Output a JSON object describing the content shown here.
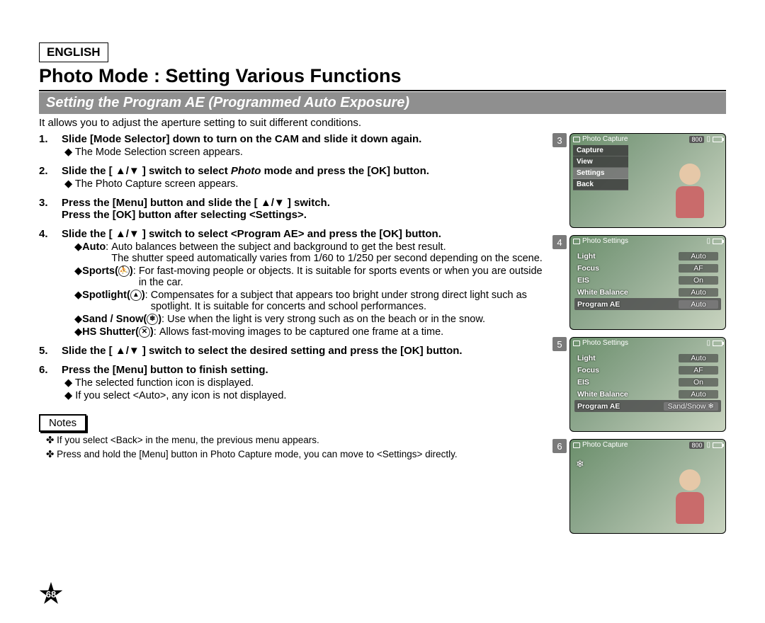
{
  "lang": "ENGLISH",
  "main_title": "Photo Mode : Setting Various Functions",
  "sub_title": "Setting the Program AE (Programmed Auto Exposure)",
  "intro": "It allows you to adjust the aperture setting to suit different conditions.",
  "steps": {
    "s1": {
      "head": "Slide [Mode Selector] down to turn on the CAM and slide it down again.",
      "sub": "The Mode Selection screen appears."
    },
    "s2": {
      "head_pre": "Slide the [ ▲/▼ ] switch to select ",
      "head_it": "Photo",
      "head_post": " mode and press the [OK] button.",
      "sub": "The Photo Capture screen appears."
    },
    "s3": {
      "head1": "Press the [Menu] button and slide the [ ▲/▼ ] switch.",
      "head2": "Press the [OK] button after selecting <Settings>."
    },
    "s4": {
      "head": "Slide the [ ▲/▼ ] switch to select <Program AE> and press the [OK] button.",
      "modes": {
        "auto": {
          "name": "Auto",
          "desc": "Auto balances between the subject and background to get the best result.",
          "desc2": "The shutter speed automatically varies from 1/60 to 1/250 per second depending on the scene."
        },
        "sports": {
          "name": "Sports(",
          "icon": "⛹",
          "close": ")",
          "desc": "For fast-moving people or objects. It is suitable for sports events or when you are outside in the car."
        },
        "spot": {
          "name": "Spotlight(",
          "icon": "▲",
          "close": ")",
          "desc": "Compensates for a subject that appears too bright under strong direct light such as spotlight. It is suitable for concerts and school performances."
        },
        "sand": {
          "name": "Sand / Snow(",
          "icon": "❄",
          "close": ")",
          "desc": "Use when the light is very strong such as on the beach or in the snow."
        },
        "hs": {
          "name": "HS Shutter(",
          "icon": "✕",
          "close": ")",
          "desc": "Allows fast-moving images to be captured one frame at a time."
        }
      }
    },
    "s5": {
      "head": "Slide the [ ▲/▼ ] switch to select the desired setting and press the [OK] button."
    },
    "s6": {
      "head": "Press the [Menu] button to finish setting.",
      "sub1": "The selected function icon is displayed.",
      "sub2": "If you select <Auto>, any icon is not displayed."
    }
  },
  "notes_label": "Notes",
  "notes": {
    "n1": "If you select <Back> in the menu, the previous menu appears.",
    "n2": "Press and hold the [Menu] button in Photo Capture mode, you can move to <Settings> directly."
  },
  "page_number": "68",
  "thumbs": {
    "t3": {
      "num": "3",
      "title": "Photo Capture",
      "badge": "800",
      "menu": [
        "Capture",
        "View",
        "Settings",
        "Back"
      ],
      "sel_index": 2
    },
    "t4": {
      "num": "4",
      "title": "Photo Settings",
      "rows": [
        [
          "Light",
          "Auto"
        ],
        [
          "Focus",
          "AF"
        ],
        [
          "EIS",
          "On"
        ],
        [
          "White Balance",
          "Auto"
        ],
        [
          "Program AE",
          "Auto"
        ]
      ],
      "hl": 4
    },
    "t5": {
      "num": "5",
      "title": "Photo Settings",
      "rows": [
        [
          "Light",
          "Auto"
        ],
        [
          "Focus",
          "AF"
        ],
        [
          "EIS",
          "On"
        ],
        [
          "White Balance",
          "Auto"
        ],
        [
          "Program AE",
          "Sand/Snow ❄"
        ]
      ],
      "hl": 4
    },
    "t6": {
      "num": "6",
      "title": "Photo Capture",
      "badge": "800"
    }
  }
}
